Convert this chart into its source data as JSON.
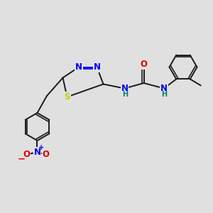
{
  "bg_color": "#e0e0e0",
  "bond_color": "#1a1a1a",
  "bond_width": 1.4,
  "atom_colors": {
    "N": "#0000ee",
    "S": "#cccc00",
    "O": "#dd0000",
    "C": "#1a1a1a",
    "H": "#008080"
  },
  "font_size": 8.5,
  "font_size_h": 7.0,
  "figsize": [
    3.0,
    3.0
  ],
  "dpi": 100
}
